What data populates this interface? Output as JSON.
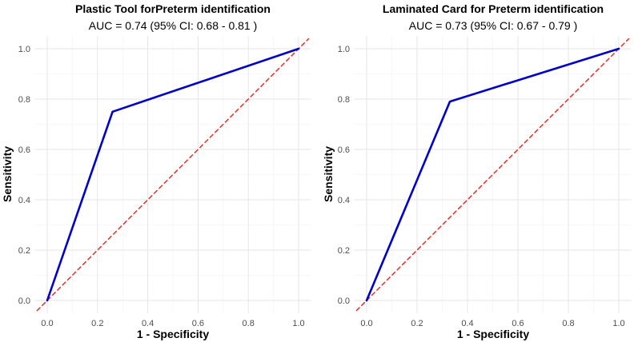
{
  "chart_data": [
    {
      "type": "line",
      "title": "Plastic Tool forPreterm identification",
      "subtitle": "AUC = 0.74  (95% CI:  0.68 - 0.81 )",
      "xlabel": "1 - Specificity",
      "ylabel": "Sensitivity",
      "xlim": [
        0,
        1
      ],
      "ylim": [
        0,
        1
      ],
      "ticks": [
        "0.0",
        "0.2",
        "0.4",
        "0.6",
        "0.8",
        "1.0"
      ],
      "tick_values": [
        0,
        0.2,
        0.4,
        0.6,
        0.8,
        1.0
      ],
      "grid": true,
      "series": [
        {
          "name": "ROC",
          "color": "#0000cc",
          "style": "solid",
          "x": [
            0,
            0.26,
            1.0
          ],
          "y": [
            0,
            0.75,
            1.0
          ]
        },
        {
          "name": "reference",
          "color": "#e0302a",
          "style": "dashed",
          "x": [
            -0.04,
            1.04
          ],
          "y": [
            -0.04,
            1.04
          ]
        }
      ]
    },
    {
      "type": "line",
      "title": "Laminated Card for Preterm identification",
      "subtitle": "AUC = 0.73  (95% CI:  0.67 - 0.79 )",
      "xlabel": "1 - Specificity",
      "ylabel": "Sensitivity",
      "xlim": [
        0,
        1
      ],
      "ylim": [
        0,
        1
      ],
      "ticks": [
        "0.0",
        "0.2",
        "0.4",
        "0.6",
        "0.8",
        "1.0"
      ],
      "tick_values": [
        0,
        0.2,
        0.4,
        0.6,
        0.8,
        1.0
      ],
      "grid": true,
      "series": [
        {
          "name": "ROC",
          "color": "#0000cc",
          "style": "solid",
          "x": [
            0,
            0.33,
            1.0
          ],
          "y": [
            0,
            0.79,
            1.0
          ]
        },
        {
          "name": "reference",
          "color": "#e0302a",
          "style": "dashed",
          "x": [
            -0.04,
            1.04
          ],
          "y": [
            -0.04,
            1.04
          ]
        }
      ]
    }
  ]
}
